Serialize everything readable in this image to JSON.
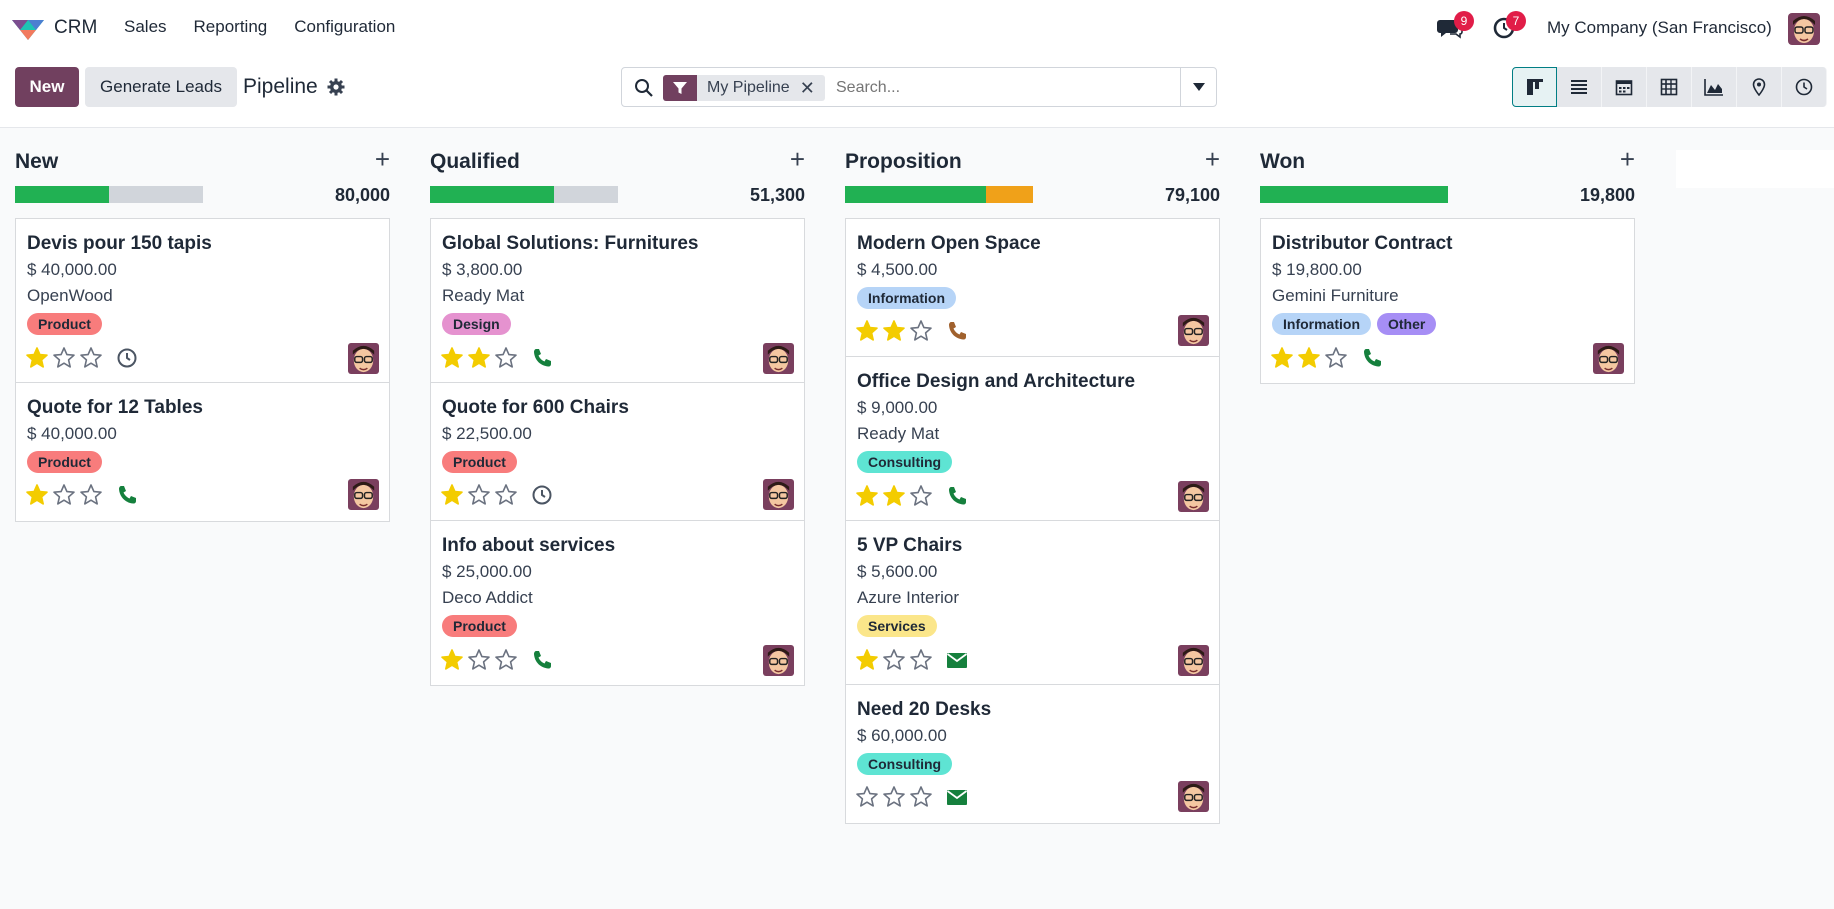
{
  "navbar": {
    "app_name": "CRM",
    "menu": [
      "Sales",
      "Reporting",
      "Configuration"
    ],
    "messages_count": "9",
    "activities_count": "7",
    "company": "My Company (San Francisco)"
  },
  "control": {
    "new_label": "New",
    "generate_label": "Generate Leads",
    "title": "Pipeline",
    "facet_label": "My Pipeline",
    "facet_remove": "✕",
    "search_placeholder": "Search..."
  },
  "views": [
    "kanban-icon",
    "list-icon",
    "calendar-icon",
    "pivot-icon",
    "graph-icon",
    "map-icon",
    "activity-icon"
  ],
  "colors": {
    "brand": "#71405f",
    "progress_green": "#21b153",
    "progress_orange": "#f0a119",
    "star_filled": "#f3cc00",
    "phone_green": "#15803d",
    "phone_brown": "#a0612d"
  },
  "columns": [
    {
      "title": "New",
      "add": "+",
      "total": "80,000",
      "progress": {
        "won": 0.5,
        "warn": 0
      },
      "cards": [
        {
          "title": "Devis pour 150 tapis",
          "amount": "$ 40,000.00",
          "partner": "OpenWood",
          "tags": [
            {
              "label": "Product",
              "color": "#f87c7c"
            }
          ],
          "stars": 1,
          "activity": "clock"
        },
        {
          "title": "Quote for 12 Tables",
          "amount": "$ 40,000.00",
          "partner": "",
          "tags": [
            {
              "label": "Product",
              "color": "#f87c7c"
            }
          ],
          "stars": 1,
          "activity": "phone"
        }
      ]
    },
    {
      "title": "Qualified",
      "add": "+",
      "total": "51,300",
      "progress": {
        "won": 0.66,
        "warn": 0
      },
      "cards": [
        {
          "title": "Global Solutions: Furnitures",
          "amount": "$ 3,800.00",
          "partner": "Ready Mat",
          "tags": [
            {
              "label": "Design",
              "color": "#e592cf"
            }
          ],
          "stars": 2,
          "activity": "phone"
        },
        {
          "title": "Quote for 600 Chairs",
          "amount": "$ 22,500.00",
          "partner": "",
          "tags": [
            {
              "label": "Product",
              "color": "#f87c7c"
            }
          ],
          "stars": 1,
          "activity": "clock"
        },
        {
          "title": "Info about services",
          "amount": "$ 25,000.00",
          "partner": "Deco Addict",
          "tags": [
            {
              "label": "Product",
              "color": "#f87c7c"
            }
          ],
          "stars": 1,
          "activity": "phone"
        }
      ]
    },
    {
      "title": "Proposition",
      "add": "+",
      "total": "79,100",
      "progress": {
        "won": 0.75,
        "warn": 0.25
      },
      "cards": [
        {
          "title": "Modern Open Space",
          "amount": "$ 4,500.00",
          "partner": "",
          "tags": [
            {
              "label": "Information",
              "color": "#b6d4f7"
            }
          ],
          "stars": 2,
          "activity": "phone-brown"
        },
        {
          "title": "Office Design and Architecture",
          "amount": "$ 9,000.00",
          "partner": "Ready Mat",
          "tags": [
            {
              "label": "Consulting",
              "color": "#5ee4d3"
            }
          ],
          "stars": 2,
          "activity": "phone"
        },
        {
          "title": "5 VP Chairs",
          "amount": "$ 5,600.00",
          "partner": "Azure Interior",
          "tags": [
            {
              "label": "Services",
              "color": "#fbe68a"
            }
          ],
          "stars": 1,
          "activity": "email"
        },
        {
          "title": "Need 20 Desks",
          "amount": "$ 60,000.00",
          "partner": "",
          "tags": [
            {
              "label": "Consulting",
              "color": "#5ee4d3"
            }
          ],
          "stars": 0,
          "activity": "email"
        }
      ]
    },
    {
      "title": "Won",
      "add": "+",
      "total": "19,800",
      "progress": {
        "won": 1,
        "warn": 0
      },
      "cards": [
        {
          "title": "Distributor Contract",
          "amount": "$ 19,800.00",
          "partner": "Gemini Furniture",
          "tags": [
            {
              "label": "Information",
              "color": "#b6d4f7"
            },
            {
              "label": "Other",
              "color": "#a68ef5"
            }
          ],
          "stars": 2,
          "activity": "phone"
        }
      ]
    }
  ]
}
